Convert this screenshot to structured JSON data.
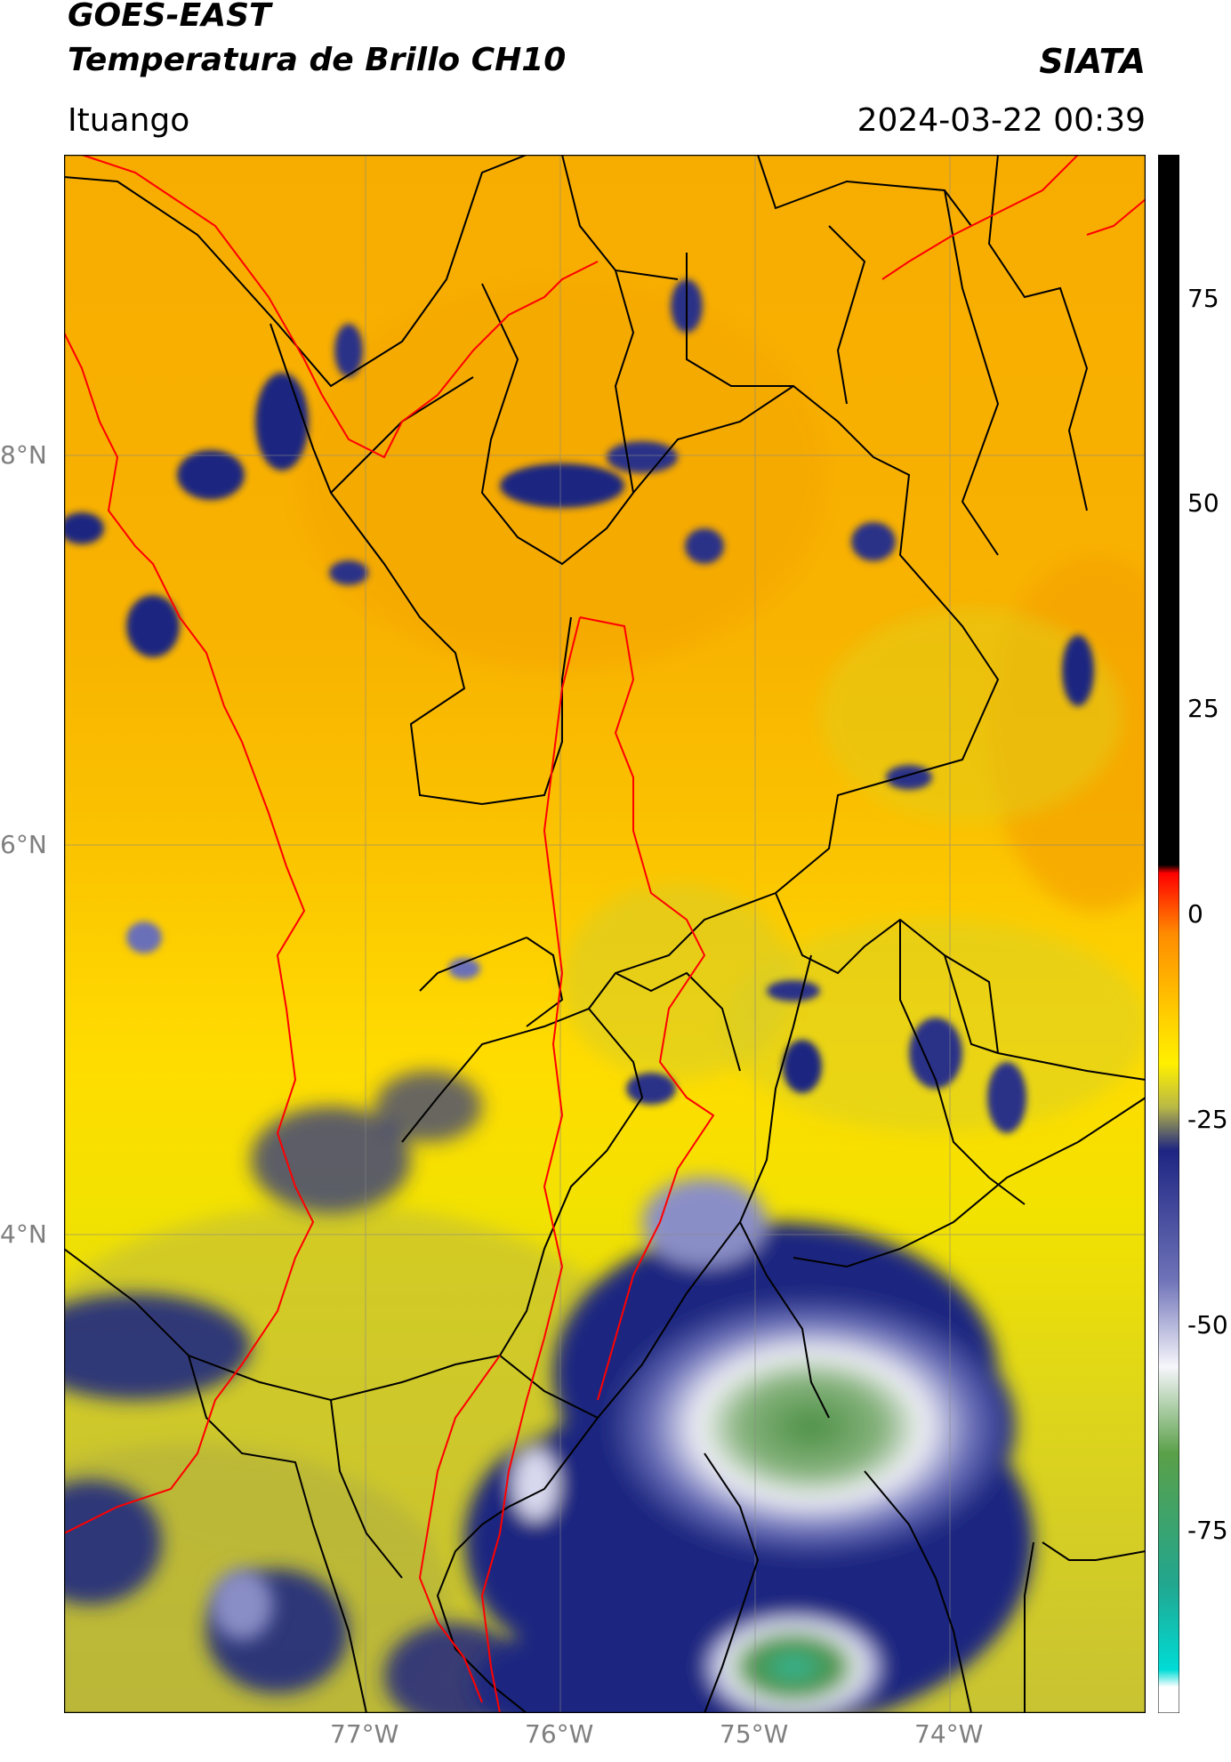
{
  "header": {
    "title_line1": "GOES-EAST",
    "title_line2": "Temperatura de Brillo CH10",
    "org": "SIATA",
    "location": "Ituango",
    "datetime": "2024-03-22 00:39"
  },
  "axes": {
    "lat_labels": [
      "8°N",
      "6°N",
      "4°N"
    ],
    "lon_labels": [
      "77°W",
      "76°W",
      "75°W",
      "74°W"
    ],
    "gridlines": true
  },
  "colorbar": {
    "ticks": [
      "75",
      "50",
      "25",
      "0",
      "-25",
      "-50",
      "-75"
    ],
    "range": [
      -90,
      90
    ],
    "stops": [
      {
        "value": 90,
        "color": "#000000"
      },
      {
        "value": 8,
        "color": "#000000"
      },
      {
        "value": 7,
        "color": "#ff0000"
      },
      {
        "value": 0,
        "color": "#ff8c00"
      },
      {
        "value": -10,
        "color": "#ffd200"
      },
      {
        "value": -15,
        "color": "#fff000"
      },
      {
        "value": -20,
        "color": "#b9b945"
      },
      {
        "value": -25,
        "color": "#1e2582"
      },
      {
        "value": -40,
        "color": "#6f73b8"
      },
      {
        "value": -50,
        "color": "#f6f6fb"
      },
      {
        "value": -60,
        "color": "#5aa048"
      },
      {
        "value": -75,
        "color": "#22a68e"
      },
      {
        "value": -85,
        "color": "#00dcd6"
      },
      {
        "value": -87,
        "color": "#ffffff"
      }
    ]
  },
  "map_colors": {
    "background_orange": "#f7ad00",
    "yellow": "#ffdf00",
    "olive": "#c8c332",
    "cloud_blue": "#1c2780",
    "cloud_mid": "#6b70b8",
    "cold_white": "#f2f2f7",
    "cold_green": "#4c9045",
    "cold_teal": "#31b89a",
    "borders": "#000000",
    "highlight_outline": "#ff0000"
  }
}
